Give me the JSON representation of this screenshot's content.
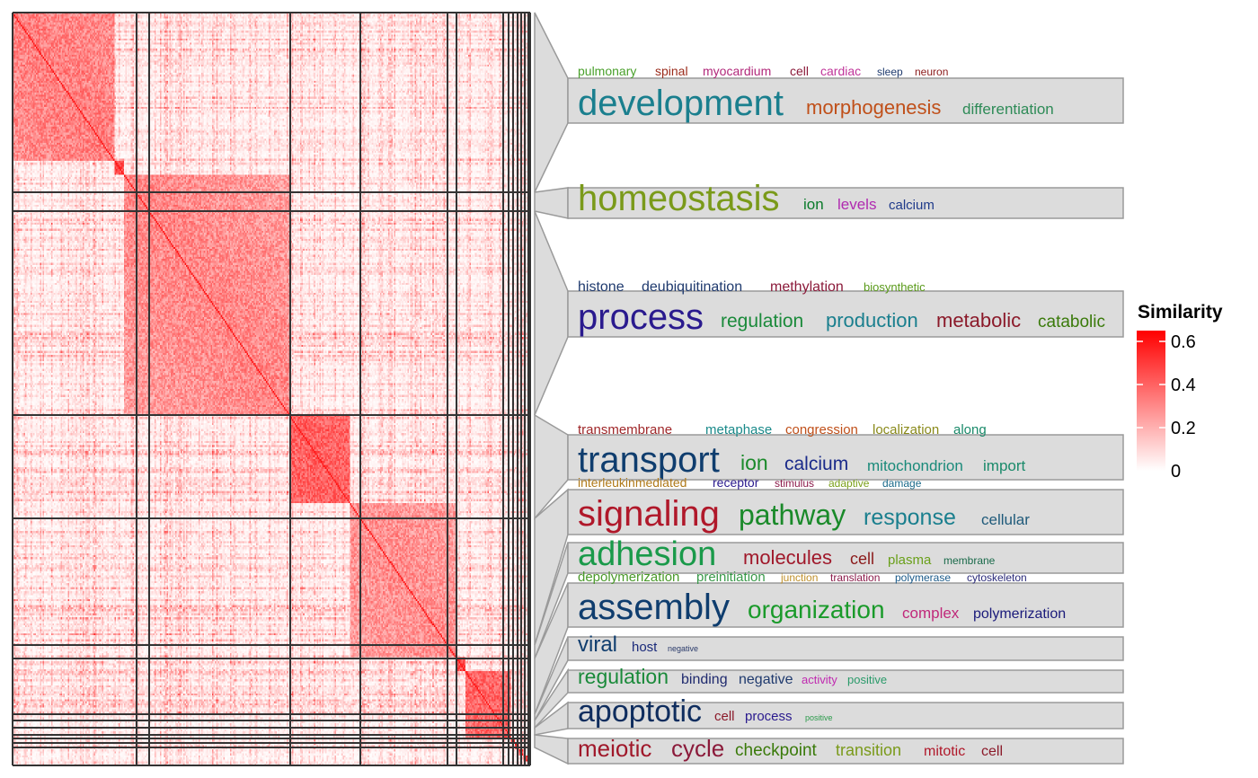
{
  "heatmap": {
    "n_clusters": 15,
    "cluster_sizes": [
      74,
      7,
      120,
      44,
      77,
      7,
      33,
      3,
      3,
      3,
      3,
      2,
      2,
      2,
      2
    ]
  },
  "legend": {
    "title": "Similarity",
    "ticks": [
      "0.6",
      "0.4",
      "0.2",
      "0"
    ],
    "tick_values": [
      0.6,
      0.4,
      0.2,
      0
    ],
    "range": [
      0,
      0.65
    ],
    "colors": [
      "#ffffff",
      "#ff0000"
    ]
  },
  "panels": [
    {
      "cluster": 0,
      "words": [
        {
          "text": "pulmonary",
          "color": "#4aa02c"
        },
        {
          "text": "spinal",
          "color": "#9b2c1c"
        },
        {
          "text": "myocardium",
          "color": "#b1287a"
        },
        {
          "text": "cell",
          "color": "#8b1a3a"
        },
        {
          "text": "cardiac",
          "color": "#c0359a"
        },
        {
          "text": "sleep",
          "color": "#1f3a6e"
        },
        {
          "text": "neuron",
          "color": "#8b1a1a"
        },
        {
          "text": "development",
          "color": "#1a7f8e"
        },
        {
          "text": "morphogenesis",
          "color": "#c0501a"
        },
        {
          "text": "differentiation",
          "color": "#2e8b57"
        }
      ]
    },
    {
      "cluster": 2,
      "words": [
        {
          "text": "homeostasis",
          "color": "#7a9a1a"
        },
        {
          "text": "ion",
          "color": "#0a7a2a"
        },
        {
          "text": "levels",
          "color": "#b02ab0"
        },
        {
          "text": "calcium",
          "color": "#1f3a8a"
        }
      ]
    },
    {
      "cluster": 3,
      "words": [
        {
          "text": "histone",
          "color": "#1f3a6e"
        },
        {
          "text": "deubiquitination",
          "color": "#1f3a6e"
        },
        {
          "text": "methylation",
          "color": "#8b1a3a"
        },
        {
          "text": "biosynthetic",
          "color": "#5a9a1a"
        },
        {
          "text": "process",
          "color": "#2a1a8e"
        },
        {
          "text": "regulation",
          "color": "#1a8a3a"
        },
        {
          "text": "production",
          "color": "#1a7f8e"
        },
        {
          "text": "metabolic",
          "color": "#8b1a2a"
        },
        {
          "text": "catabolic",
          "color": "#3a7a0a"
        }
      ]
    },
    {
      "cluster": 4,
      "words": [
        {
          "text": "transmembrane",
          "color": "#a0282a"
        },
        {
          "text": "metaphase",
          "color": "#1a8a8a"
        },
        {
          "text": "congression",
          "color": "#c0501a"
        },
        {
          "text": "localization",
          "color": "#8a8a1a"
        },
        {
          "text": "along",
          "color": "#1a8a6a"
        },
        {
          "text": "transport",
          "color": "#0f3d6e"
        },
        {
          "text": "ion",
          "color": "#1a8a2a"
        },
        {
          "text": "calcium",
          "color": "#1a2a8a"
        },
        {
          "text": "mitochondrion",
          "color": "#1a8a7a"
        },
        {
          "text": "import",
          "color": "#1a8a6a"
        }
      ]
    },
    {
      "cluster": 5,
      "words": [
        {
          "text": "interleukinmediated",
          "color": "#b07a1a"
        },
        {
          "text": "receptor",
          "color": "#2a1a8e"
        },
        {
          "text": "stimulus",
          "color": "#8b1a4a"
        },
        {
          "text": "adaptive",
          "color": "#7aa01a"
        },
        {
          "text": "damage",
          "color": "#1a6a8a"
        },
        {
          "text": "signaling",
          "color": "#b0182a"
        },
        {
          "text": "pathway",
          "color": "#1a8a2a"
        },
        {
          "text": "response",
          "color": "#1a7f8e"
        },
        {
          "text": "cellular",
          "color": "#1f5a7a"
        }
      ]
    },
    {
      "cluster": 6,
      "words": [
        {
          "text": "adhesion",
          "color": "#1a9a4a"
        },
        {
          "text": "molecules",
          "color": "#a0182a"
        },
        {
          "text": "cell",
          "color": "#8b1a1a"
        },
        {
          "text": "plasma",
          "color": "#6aa01a"
        },
        {
          "text": "membrane",
          "color": "#1a6a4a"
        }
      ]
    },
    {
      "cluster": 7,
      "words": [
        {
          "text": "depolymerization",
          "color": "#4a9a2a"
        },
        {
          "text": "preinitiation",
          "color": "#3a9a4a"
        },
        {
          "text": "junction",
          "color": "#c0902a"
        },
        {
          "text": "translation",
          "color": "#8b1a4a"
        },
        {
          "text": "polymerase",
          "color": "#1a5a8a"
        },
        {
          "text": "cytoskeleton",
          "color": "#2a2a7a"
        },
        {
          "text": "assembly",
          "color": "#0f3d6e"
        },
        {
          "text": "organization",
          "color": "#1a9a2a"
        },
        {
          "text": "complex",
          "color": "#c0287a"
        },
        {
          "text": "polymerization",
          "color": "#1a1a7a"
        }
      ]
    },
    {
      "cluster": 8,
      "words": [
        {
          "text": "viral",
          "color": "#0f3d6e"
        },
        {
          "text": "host",
          "color": "#1a2a7a"
        },
        {
          "text": "negative",
          "color": "#2a3a6a"
        }
      ]
    },
    {
      "cluster": 9,
      "words": [
        {
          "text": "regulation",
          "color": "#1a8a3a"
        },
        {
          "text": "binding",
          "color": "#1f2a6e"
        },
        {
          "text": "negative",
          "color": "#1f3a6e"
        },
        {
          "text": "activity",
          "color": "#c02ab0"
        },
        {
          "text": "positive",
          "color": "#2a9a6a"
        }
      ]
    },
    {
      "cluster": 10,
      "words": [
        {
          "text": "apoptotic",
          "color": "#0f2d5e"
        },
        {
          "text": "cell",
          "color": "#8b1a2a"
        },
        {
          "text": "process",
          "color": "#2a1a8e"
        },
        {
          "text": "positive",
          "color": "#2a9a4a"
        }
      ]
    },
    {
      "cluster": 11,
      "words": [
        {
          "text": "meiotic",
          "color": "#a0182a"
        },
        {
          "text": "cycle",
          "color": "#8b1a3a"
        },
        {
          "text": "checkpoint",
          "color": "#3a7a0a"
        },
        {
          "text": "transition",
          "color": "#7a9a1a"
        },
        {
          "text": "mitotic",
          "color": "#b0182a"
        },
        {
          "text": "cell",
          "color": "#8b1a2a"
        }
      ]
    }
  ],
  "chart_data": {
    "type": "heatmap",
    "legend_title": "Similarity",
    "color_range": [
      0,
      0.65
    ],
    "legend_ticks": [
      0,
      0.2,
      0.4,
      0.6
    ],
    "clusters": [
      {
        "index": 0,
        "approx_size": 74,
        "keywords": [
          "development",
          "morphogenesis",
          "differentiation",
          "pulmonary",
          "spinal",
          "myocardium",
          "cell",
          "cardiac",
          "sleep",
          "neuron"
        ]
      },
      {
        "index": 1,
        "approx_size": 7,
        "keywords": []
      },
      {
        "index": 2,
        "approx_size": 120,
        "keywords": [
          "homeostasis",
          "ion",
          "levels",
          "calcium"
        ]
      },
      {
        "index": 3,
        "approx_size": 44,
        "keywords": [
          "process",
          "regulation",
          "production",
          "metabolic",
          "catabolic",
          "histone",
          "deubiquitination",
          "methylation",
          "biosynthetic"
        ]
      },
      {
        "index": 4,
        "approx_size": 77,
        "keywords": [
          "transport",
          "ion",
          "calcium",
          "mitochondrion",
          "import",
          "transmembrane",
          "metaphase",
          "congression",
          "localization",
          "along"
        ]
      },
      {
        "index": 5,
        "approx_size": 7,
        "keywords": [
          "signaling",
          "pathway",
          "response",
          "cellular",
          "interleukinmediated",
          "receptor",
          "stimulus",
          "adaptive",
          "damage"
        ]
      },
      {
        "index": 6,
        "approx_size": 33,
        "keywords": [
          "adhesion",
          "molecules",
          "cell",
          "plasma",
          "membrane"
        ]
      },
      {
        "index": 7,
        "approx_size": 3,
        "keywords": [
          "assembly",
          "organization",
          "complex",
          "polymerization",
          "depolymerization",
          "preinitiation",
          "junction",
          "translation",
          "polymerase",
          "cytoskeleton"
        ]
      },
      {
        "index": 8,
        "approx_size": 3,
        "keywords": [
          "viral",
          "host",
          "negative"
        ]
      },
      {
        "index": 9,
        "approx_size": 3,
        "keywords": [
          "regulation",
          "binding",
          "negative",
          "activity",
          "positive"
        ]
      },
      {
        "index": 10,
        "approx_size": 3,
        "keywords": [
          "apoptotic",
          "cell",
          "process",
          "positive"
        ]
      },
      {
        "index": 11,
        "approx_size": 2,
        "keywords": [
          "meiotic",
          "cycle",
          "checkpoint",
          "transition",
          "mitotic",
          "cell"
        ]
      },
      {
        "index": 12,
        "approx_size": 2,
        "keywords": []
      },
      {
        "index": 13,
        "approx_size": 2,
        "keywords": []
      },
      {
        "index": 14,
        "approx_size": 2,
        "keywords": []
      }
    ]
  }
}
